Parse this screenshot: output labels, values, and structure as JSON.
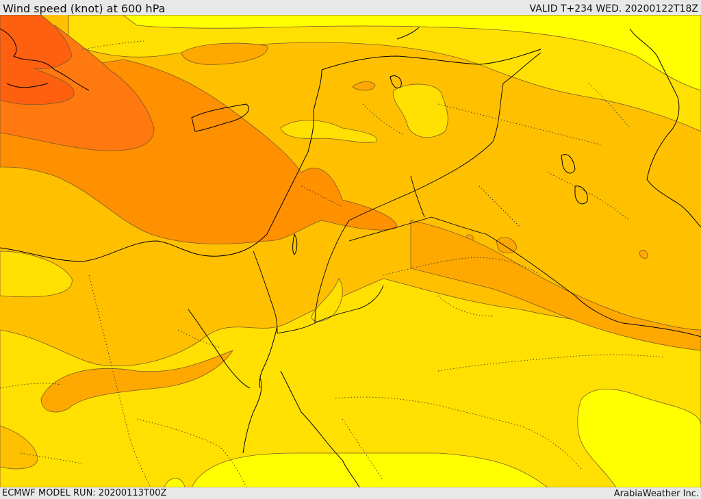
{
  "header": {
    "title": "Wind speed (knot) at 600 hPa",
    "valid": "VALID T+234 WED. 20200122T18Z"
  },
  "footer": {
    "model_run": "ECMWF MODEL RUN: 20200113T00Z",
    "credit": "ArabiaWeather Inc."
  },
  "map": {
    "variable": "wind speed",
    "units": "knot",
    "level": "600 hPa",
    "palette": {
      "band_1": "#ffff00",
      "band_2": "#ffe000",
      "band_3": "#ffc000",
      "band_4": "#ffa800",
      "band_5": "#ff9000",
      "band_6": "#ff7810",
      "band_7": "#ff6010",
      "coastline": "#000000",
      "border": "#000000",
      "contour": "#7a5a2a"
    }
  }
}
